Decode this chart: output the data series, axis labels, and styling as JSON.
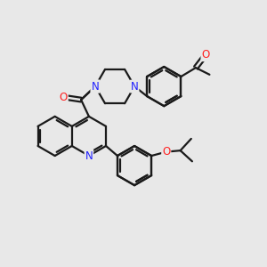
{
  "background_color": "#e8e8e8",
  "bond_color": "#1a1a1a",
  "nitrogen_color": "#2020ff",
  "oxygen_color": "#ff2020",
  "line_width": 1.6,
  "figsize": [
    3.0,
    3.0
  ],
  "dpi": 100,
  "xlim": [
    0,
    10
  ],
  "ylim": [
    0,
    10
  ]
}
